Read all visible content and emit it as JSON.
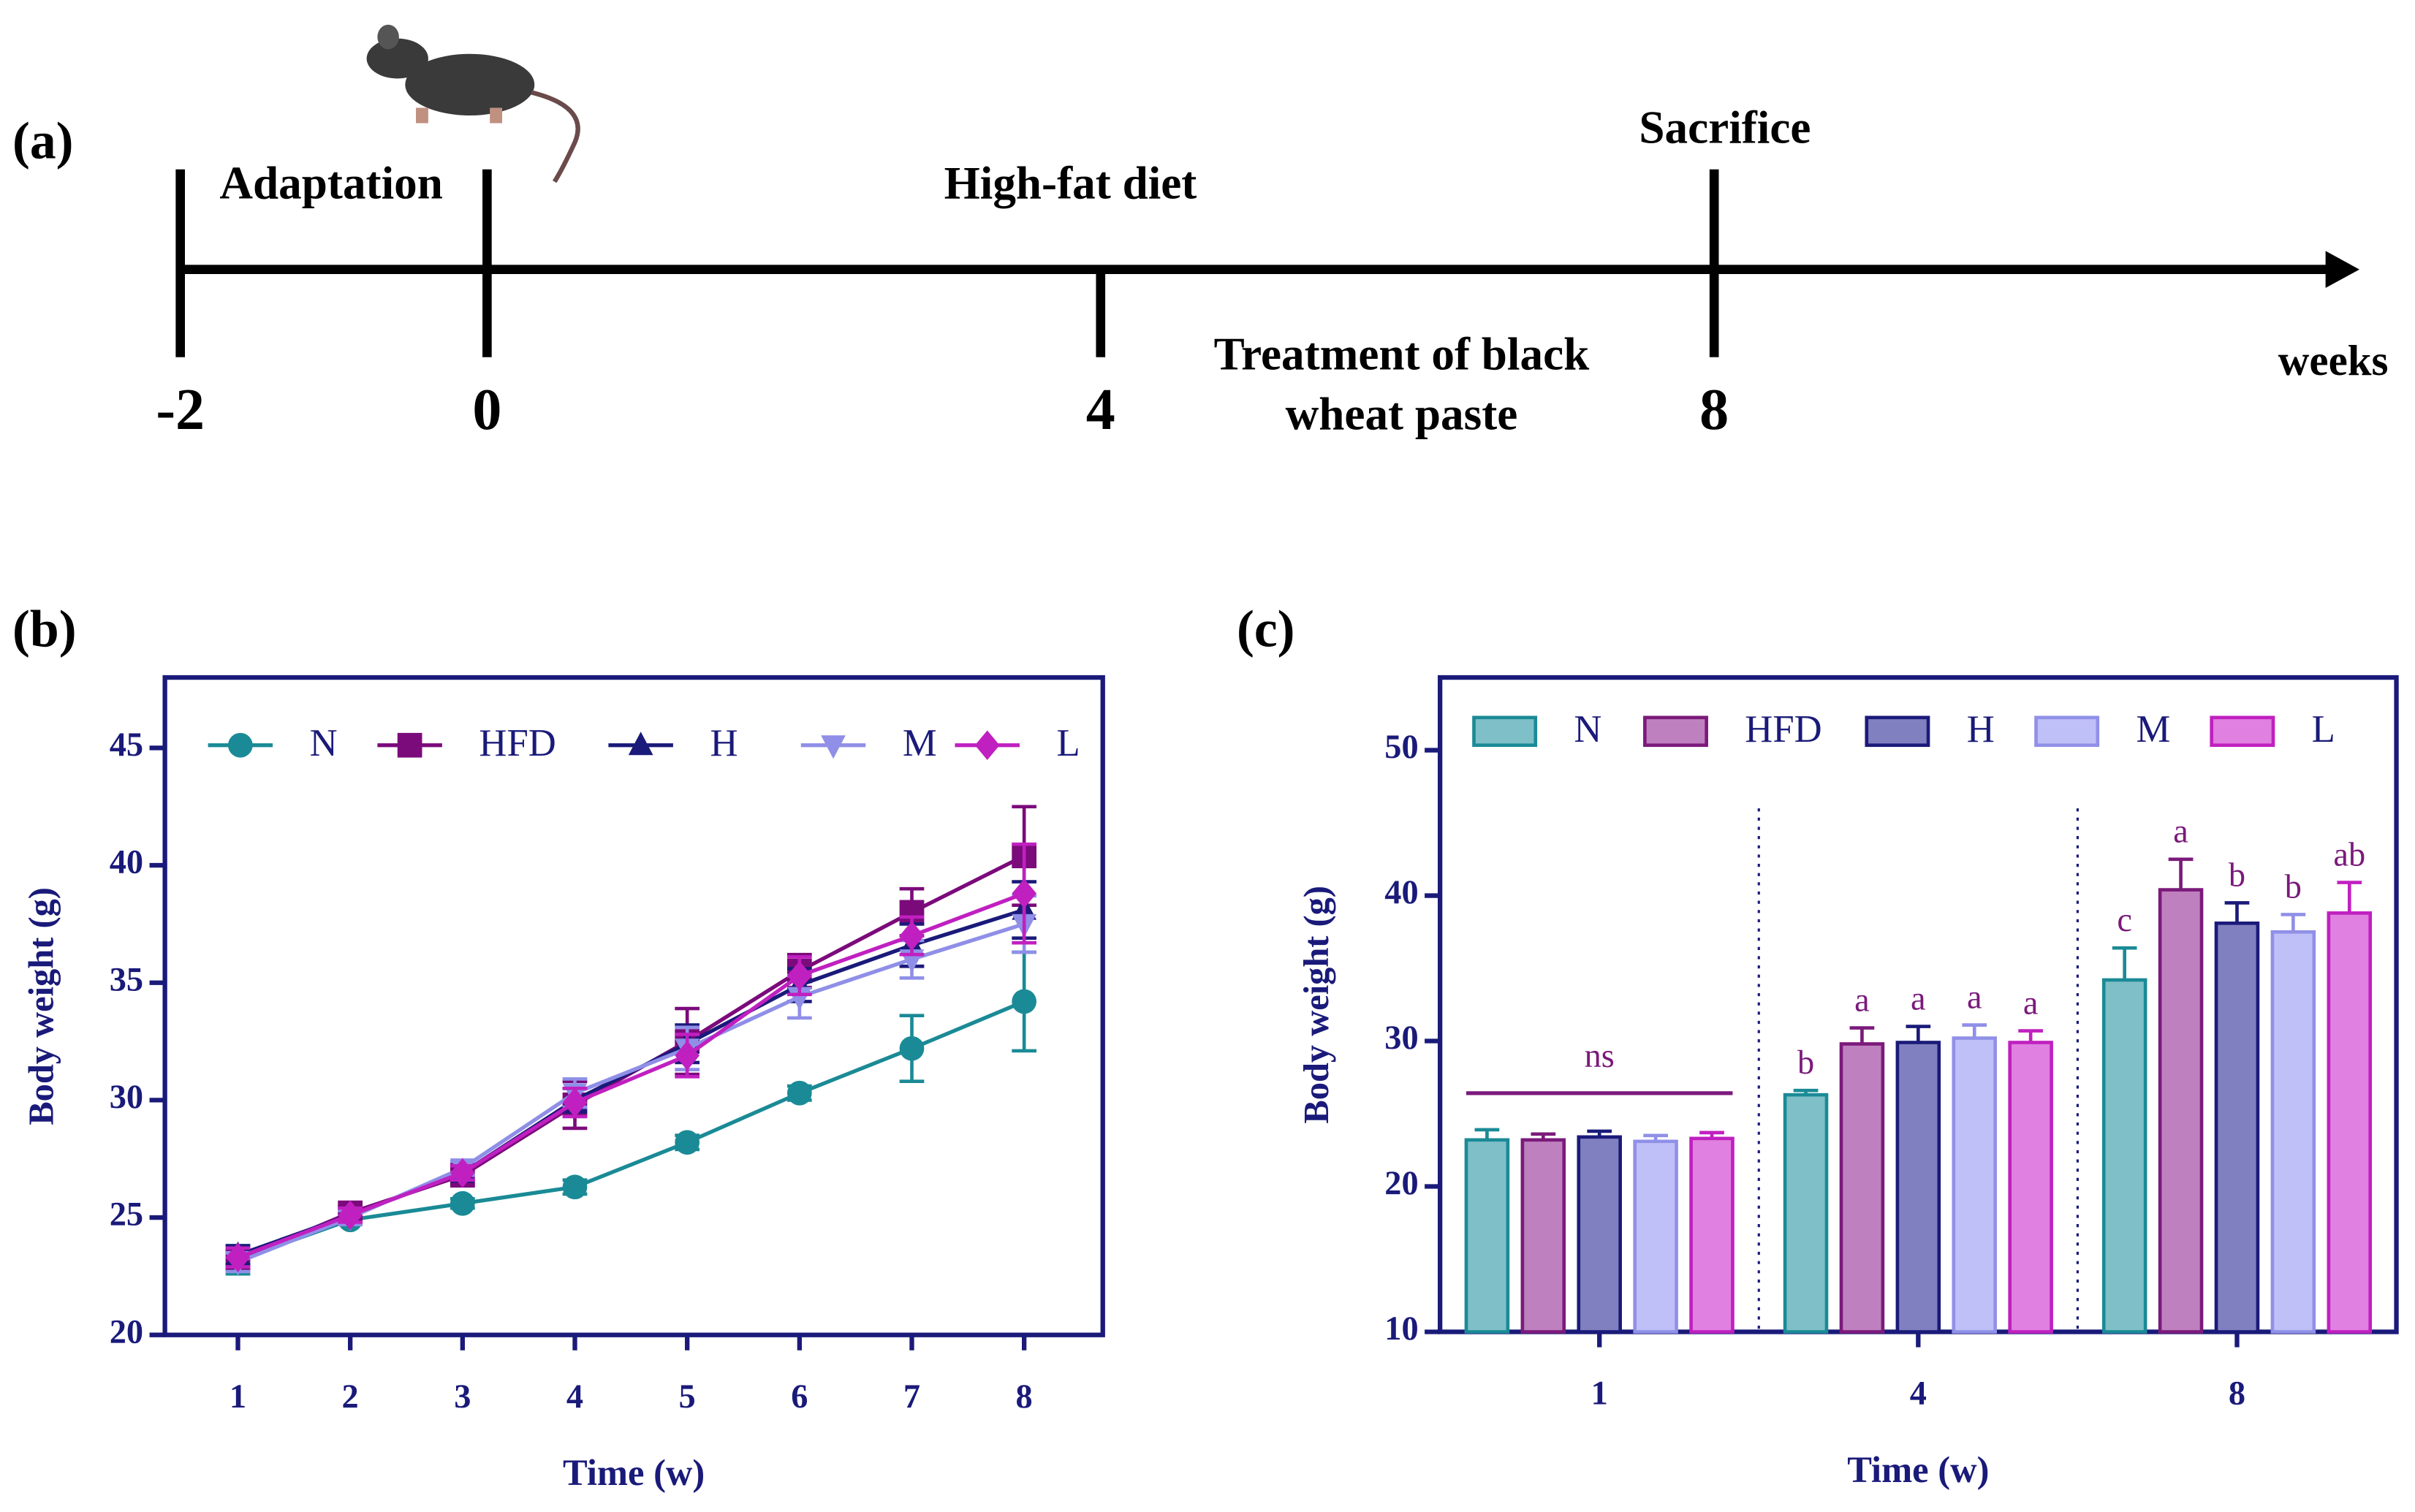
{
  "timeline": {
    "panel_label": "(a)",
    "ticks": [
      -2,
      0,
      4,
      8
    ],
    "unit": "weeks",
    "phases": [
      "Adaptation",
      "High-fat diet",
      "Sacrifice"
    ],
    "treatment": [
      "Treatment of black",
      "wheat paste"
    ]
  },
  "chart_data": [
    {
      "type": "line",
      "panel_label": "(b)",
      "xlabel": "Time (w)",
      "ylabel": "Body weight (g)",
      "x": [
        1,
        2,
        3,
        4,
        5,
        6,
        7,
        8
      ],
      "xlim": [
        0.35,
        8.7
      ],
      "xticks": [
        1,
        2,
        3,
        4,
        5,
        6,
        7,
        8
      ],
      "ylim": [
        20,
        48
      ],
      "yticks": [
        20,
        25,
        30,
        35,
        40,
        45
      ],
      "legend": "top",
      "series": [
        {
          "name": "N",
          "color": "#1a8a96",
          "marker": "circle",
          "values": [
            23.2,
            24.9,
            25.6,
            26.3,
            28.2,
            30.3,
            32.2,
            34.2
          ],
          "errors": [
            0.6,
            0.2,
            0.2,
            0.3,
            0.3,
            0.3,
            1.4,
            2.1
          ]
        },
        {
          "name": "HFD",
          "color": "#7b0a7b",
          "marker": "square",
          "values": [
            23.2,
            25.2,
            26.8,
            29.8,
            32.5,
            35.5,
            38.0,
            40.4
          ],
          "errors": [
            0.4,
            0.3,
            0.4,
            1.0,
            1.4,
            0.7,
            1.0,
            2.1
          ]
        },
        {
          "name": "H",
          "color": "#1a1a7a",
          "marker": "triangle",
          "values": [
            23.4,
            25.1,
            26.9,
            30.0,
            32.4,
            34.9,
            36.6,
            38.1
          ],
          "errors": [
            0.4,
            0.3,
            0.3,
            0.5,
            0.8,
            0.7,
            0.9,
            1.2
          ]
        },
        {
          "name": "M",
          "color": "#8f8fe8",
          "marker": "triangle-down",
          "values": [
            23.1,
            25.0,
            27.1,
            30.3,
            32.2,
            34.4,
            36.0,
            37.5
          ],
          "errors": [
            0.4,
            0.3,
            0.3,
            0.6,
            0.9,
            0.9,
            0.8,
            1.2
          ]
        },
        {
          "name": "L",
          "color": "#c020c0",
          "marker": "diamond",
          "values": [
            23.3,
            25.1,
            26.9,
            29.9,
            31.9,
            35.3,
            37.0,
            38.8
          ],
          "errors": [
            0.4,
            0.3,
            0.3,
            0.6,
            0.9,
            0.8,
            0.8,
            2.1
          ]
        }
      ]
    },
    {
      "type": "bar",
      "panel_label": "(c)",
      "xlabel": "Time (w)",
      "ylabel": "Body weight (g)",
      "categories": [
        "1",
        "4",
        "8"
      ],
      "ylim": [
        10,
        55
      ],
      "yticks": [
        10,
        20,
        30,
        40,
        50
      ],
      "legend": "top",
      "group_annotations": [
        "ns",
        null,
        null
      ],
      "letter_color": "#7b1a7b",
      "series": [
        {
          "name": "N",
          "color": "#1a8a96",
          "fill": "#7fbfc8",
          "values": [
            23.2,
            26.3,
            34.2
          ],
          "errors": [
            0.7,
            0.3,
            2.2
          ],
          "letters": [
            null,
            "b",
            "c"
          ]
        },
        {
          "name": "HFD",
          "color": "#7b1a7b",
          "fill": "#bf80bf",
          "values": [
            23.2,
            29.8,
            40.4
          ],
          "errors": [
            0.4,
            1.1,
            2.1
          ],
          "letters": [
            null,
            "a",
            "a"
          ]
        },
        {
          "name": "H",
          "color": "#1a1a7a",
          "fill": "#8080c0",
          "values": [
            23.4,
            29.9,
            38.1
          ],
          "errors": [
            0.4,
            1.1,
            1.4
          ],
          "letters": [
            null,
            "a",
            "b"
          ]
        },
        {
          "name": "M",
          "color": "#9090e8",
          "fill": "#c0c0f8",
          "values": [
            23.1,
            30.2,
            37.5
          ],
          "errors": [
            0.4,
            0.9,
            1.2
          ],
          "letters": [
            null,
            "a",
            "b"
          ]
        },
        {
          "name": "L",
          "color": "#c020c0",
          "fill": "#e080e0",
          "values": [
            23.3,
            29.9,
            38.8
          ],
          "errors": [
            0.4,
            0.8,
            2.1
          ],
          "letters": [
            null,
            "a",
            "ab"
          ]
        }
      ]
    }
  ]
}
